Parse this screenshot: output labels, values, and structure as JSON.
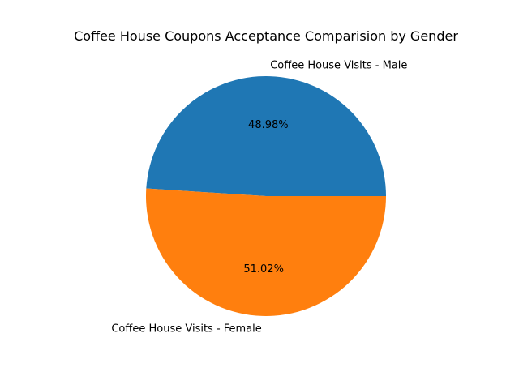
{
  "chart_data": {
    "type": "pie",
    "title": "Coffee House Coupons Acceptance Comparision by Gender",
    "categories": [
      "Coffee House Visits - Male",
      "Coffee House Visits - Female"
    ],
    "values": [
      48.98,
      51.02
    ],
    "value_labels": [
      "48.98%",
      "51.02%"
    ],
    "colors": [
      "#1f77b4",
      "#ff7f0e"
    ],
    "start_angle_deg": 0,
    "direction": "counterclockwise"
  }
}
